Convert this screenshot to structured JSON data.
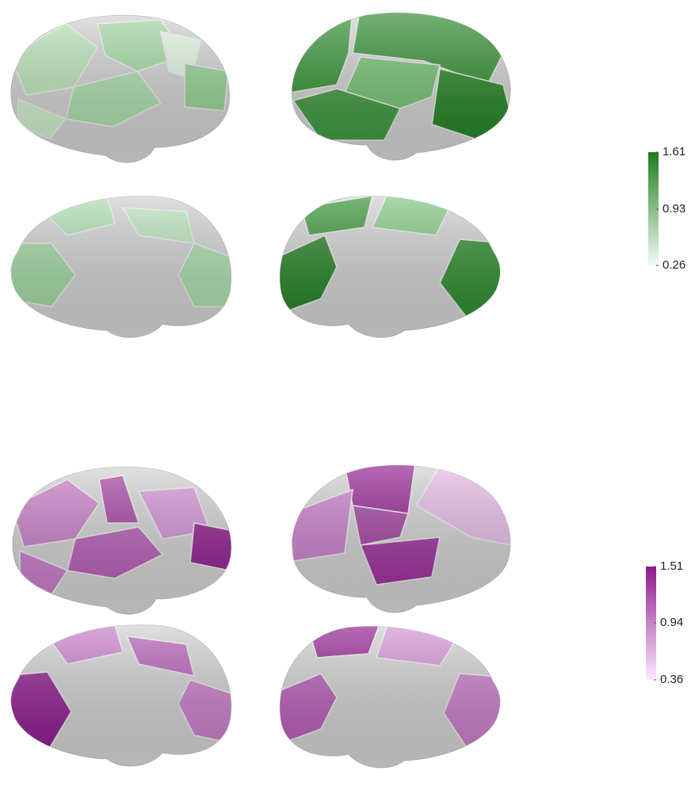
{
  "colorbars": [
    {
      "ticks": [
        0.26,
        0.93,
        1.61
      ],
      "color_low": "#f2fbf2",
      "color_high": "#1e7d1e"
    },
    {
      "ticks": [
        0.36,
        0.94,
        1.51
      ],
      "color_low": "#fbeafb",
      "color_high": "#8e1a8e"
    }
  ]
}
